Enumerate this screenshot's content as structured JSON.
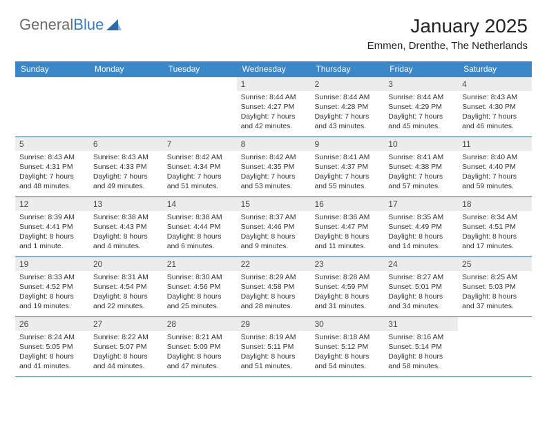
{
  "logo": {
    "text_general": "General",
    "text_blue": "Blue"
  },
  "title": "January 2025",
  "location": "Emmen, Drenthe, The Netherlands",
  "colors": {
    "header_bg": "#3b87c8",
    "header_text": "#ffffff",
    "daynum_bg": "#ececec",
    "row_border": "#2f5d8a"
  },
  "weekdays": [
    "Sunday",
    "Monday",
    "Tuesday",
    "Wednesday",
    "Thursday",
    "Friday",
    "Saturday"
  ],
  "weeks": [
    [
      {
        "day": "",
        "lines": []
      },
      {
        "day": "",
        "lines": []
      },
      {
        "day": "",
        "lines": []
      },
      {
        "day": "1",
        "lines": [
          "Sunrise: 8:44 AM",
          "Sunset: 4:27 PM",
          "Daylight: 7 hours",
          "and 42 minutes."
        ]
      },
      {
        "day": "2",
        "lines": [
          "Sunrise: 8:44 AM",
          "Sunset: 4:28 PM",
          "Daylight: 7 hours",
          "and 43 minutes."
        ]
      },
      {
        "day": "3",
        "lines": [
          "Sunrise: 8:44 AM",
          "Sunset: 4:29 PM",
          "Daylight: 7 hours",
          "and 45 minutes."
        ]
      },
      {
        "day": "4",
        "lines": [
          "Sunrise: 8:43 AM",
          "Sunset: 4:30 PM",
          "Daylight: 7 hours",
          "and 46 minutes."
        ]
      }
    ],
    [
      {
        "day": "5",
        "lines": [
          "Sunrise: 8:43 AM",
          "Sunset: 4:31 PM",
          "Daylight: 7 hours",
          "and 48 minutes."
        ]
      },
      {
        "day": "6",
        "lines": [
          "Sunrise: 8:43 AM",
          "Sunset: 4:33 PM",
          "Daylight: 7 hours",
          "and 49 minutes."
        ]
      },
      {
        "day": "7",
        "lines": [
          "Sunrise: 8:42 AM",
          "Sunset: 4:34 PM",
          "Daylight: 7 hours",
          "and 51 minutes."
        ]
      },
      {
        "day": "8",
        "lines": [
          "Sunrise: 8:42 AM",
          "Sunset: 4:35 PM",
          "Daylight: 7 hours",
          "and 53 minutes."
        ]
      },
      {
        "day": "9",
        "lines": [
          "Sunrise: 8:41 AM",
          "Sunset: 4:37 PM",
          "Daylight: 7 hours",
          "and 55 minutes."
        ]
      },
      {
        "day": "10",
        "lines": [
          "Sunrise: 8:41 AM",
          "Sunset: 4:38 PM",
          "Daylight: 7 hours",
          "and 57 minutes."
        ]
      },
      {
        "day": "11",
        "lines": [
          "Sunrise: 8:40 AM",
          "Sunset: 4:40 PM",
          "Daylight: 7 hours",
          "and 59 minutes."
        ]
      }
    ],
    [
      {
        "day": "12",
        "lines": [
          "Sunrise: 8:39 AM",
          "Sunset: 4:41 PM",
          "Daylight: 8 hours",
          "and 1 minute."
        ]
      },
      {
        "day": "13",
        "lines": [
          "Sunrise: 8:38 AM",
          "Sunset: 4:43 PM",
          "Daylight: 8 hours",
          "and 4 minutes."
        ]
      },
      {
        "day": "14",
        "lines": [
          "Sunrise: 8:38 AM",
          "Sunset: 4:44 PM",
          "Daylight: 8 hours",
          "and 6 minutes."
        ]
      },
      {
        "day": "15",
        "lines": [
          "Sunrise: 8:37 AM",
          "Sunset: 4:46 PM",
          "Daylight: 8 hours",
          "and 9 minutes."
        ]
      },
      {
        "day": "16",
        "lines": [
          "Sunrise: 8:36 AM",
          "Sunset: 4:47 PM",
          "Daylight: 8 hours",
          "and 11 minutes."
        ]
      },
      {
        "day": "17",
        "lines": [
          "Sunrise: 8:35 AM",
          "Sunset: 4:49 PM",
          "Daylight: 8 hours",
          "and 14 minutes."
        ]
      },
      {
        "day": "18",
        "lines": [
          "Sunrise: 8:34 AM",
          "Sunset: 4:51 PM",
          "Daylight: 8 hours",
          "and 17 minutes."
        ]
      }
    ],
    [
      {
        "day": "19",
        "lines": [
          "Sunrise: 8:33 AM",
          "Sunset: 4:52 PM",
          "Daylight: 8 hours",
          "and 19 minutes."
        ]
      },
      {
        "day": "20",
        "lines": [
          "Sunrise: 8:31 AM",
          "Sunset: 4:54 PM",
          "Daylight: 8 hours",
          "and 22 minutes."
        ]
      },
      {
        "day": "21",
        "lines": [
          "Sunrise: 8:30 AM",
          "Sunset: 4:56 PM",
          "Daylight: 8 hours",
          "and 25 minutes."
        ]
      },
      {
        "day": "22",
        "lines": [
          "Sunrise: 8:29 AM",
          "Sunset: 4:58 PM",
          "Daylight: 8 hours",
          "and 28 minutes."
        ]
      },
      {
        "day": "23",
        "lines": [
          "Sunrise: 8:28 AM",
          "Sunset: 4:59 PM",
          "Daylight: 8 hours",
          "and 31 minutes."
        ]
      },
      {
        "day": "24",
        "lines": [
          "Sunrise: 8:27 AM",
          "Sunset: 5:01 PM",
          "Daylight: 8 hours",
          "and 34 minutes."
        ]
      },
      {
        "day": "25",
        "lines": [
          "Sunrise: 8:25 AM",
          "Sunset: 5:03 PM",
          "Daylight: 8 hours",
          "and 37 minutes."
        ]
      }
    ],
    [
      {
        "day": "26",
        "lines": [
          "Sunrise: 8:24 AM",
          "Sunset: 5:05 PM",
          "Daylight: 8 hours",
          "and 41 minutes."
        ]
      },
      {
        "day": "27",
        "lines": [
          "Sunrise: 8:22 AM",
          "Sunset: 5:07 PM",
          "Daylight: 8 hours",
          "and 44 minutes."
        ]
      },
      {
        "day": "28",
        "lines": [
          "Sunrise: 8:21 AM",
          "Sunset: 5:09 PM",
          "Daylight: 8 hours",
          "and 47 minutes."
        ]
      },
      {
        "day": "29",
        "lines": [
          "Sunrise: 8:19 AM",
          "Sunset: 5:11 PM",
          "Daylight: 8 hours",
          "and 51 minutes."
        ]
      },
      {
        "day": "30",
        "lines": [
          "Sunrise: 8:18 AM",
          "Sunset: 5:12 PM",
          "Daylight: 8 hours",
          "and 54 minutes."
        ]
      },
      {
        "day": "31",
        "lines": [
          "Sunrise: 8:16 AM",
          "Sunset: 5:14 PM",
          "Daylight: 8 hours",
          "and 58 minutes."
        ]
      },
      {
        "day": "",
        "lines": []
      }
    ]
  ]
}
